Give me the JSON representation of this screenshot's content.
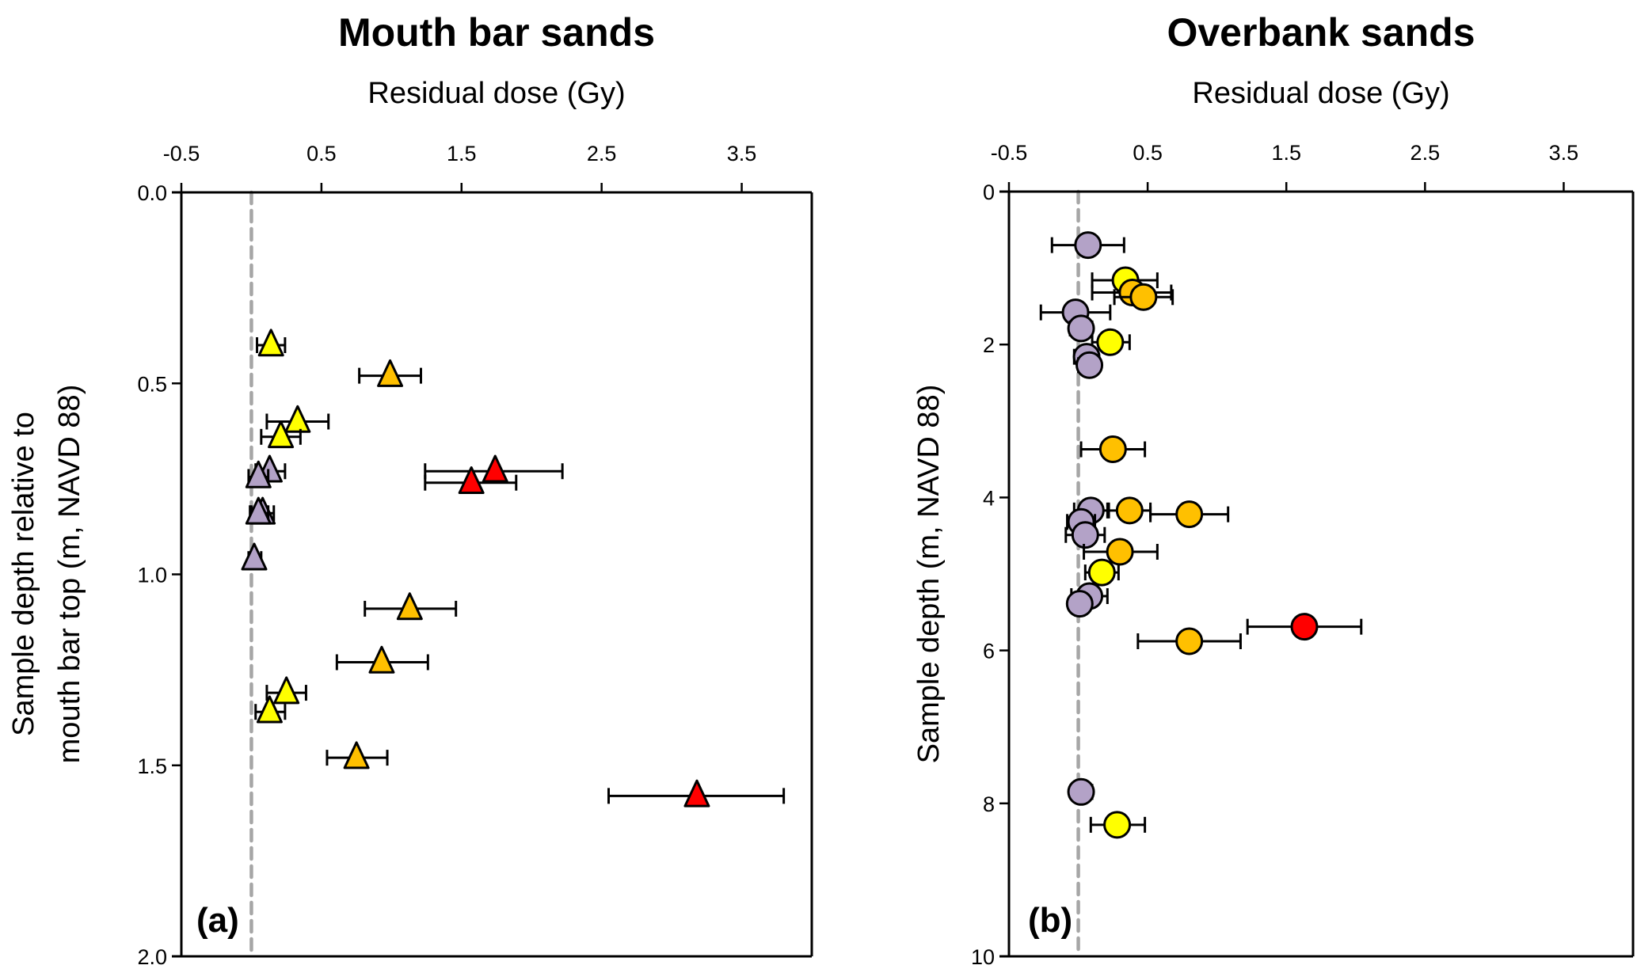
{
  "colors": {
    "yellow": "#FFFF00",
    "orange": "#FFC000",
    "red": "#FF0000",
    "purple": "#B3A2C7",
    "zero_line": "#A6A6A6",
    "axis": "#000000"
  },
  "chart_data": [
    {
      "type": "scatter",
      "panel_label": "(a)",
      "title": "Mouth bar sands",
      "xlabel": "Residual dose (Gy)",
      "ylabel_lines": [
        "Sample depth relative to",
        "mouth bar top (m, NAVD 88)"
      ],
      "xlim": [
        -0.5,
        4.0
      ],
      "ylim": [
        0.0,
        2.0
      ],
      "y_inverted": true,
      "x_axis_position": "top",
      "xticks": [
        -0.5,
        0.5,
        1.5,
        2.5,
        3.5
      ],
      "xtick_labels": [
        "-0.5",
        "0.5",
        "1.5",
        "2.5",
        "3.5"
      ],
      "yticks": [
        0.0,
        0.5,
        1.0,
        1.5,
        2.0
      ],
      "ytick_labels": [
        "0.0",
        "0.5",
        "1.0",
        "1.5",
        "2.0"
      ],
      "reference_line": {
        "x": 0,
        "style": "dashed"
      },
      "marker": "triangle",
      "grid": false,
      "points": [
        {
          "x": 0.14,
          "y": 0.4,
          "xerr_lo": 0.04,
          "xerr_hi": 0.24,
          "color": "yellow"
        },
        {
          "x": 0.99,
          "y": 0.48,
          "xerr_lo": 0.77,
          "xerr_hi": 1.21,
          "color": "orange"
        },
        {
          "x": 0.33,
          "y": 0.6,
          "xerr_lo": 0.11,
          "xerr_hi": 0.55,
          "color": "yellow"
        },
        {
          "x": 0.21,
          "y": 0.64,
          "xerr_lo": 0.07,
          "xerr_hi": 0.35,
          "color": "yellow"
        },
        {
          "x": 0.13,
          "y": 0.73,
          "xerr_lo": 0.03,
          "xerr_hi": 0.24,
          "color": "purple"
        },
        {
          "x": 0.05,
          "y": 0.745,
          "xerr_lo": -0.02,
          "xerr_hi": 0.12,
          "color": "purple"
        },
        {
          "x": 1.74,
          "y": 0.73,
          "xerr_lo": 1.24,
          "xerr_hi": 2.22,
          "color": "red"
        },
        {
          "x": 1.57,
          "y": 0.76,
          "xerr_lo": 1.24,
          "xerr_hi": 1.89,
          "color": "red"
        },
        {
          "x": 0.08,
          "y": 0.84,
          "xerr_lo": 0.0,
          "xerr_hi": 0.16,
          "color": "purple"
        },
        {
          "x": 0.05,
          "y": 0.84,
          "xerr_lo": -0.01,
          "xerr_hi": 0.12,
          "color": "purple"
        },
        {
          "x": 0.02,
          "y": 0.96,
          "xerr_lo": -0.02,
          "xerr_hi": 0.07,
          "color": "purple"
        },
        {
          "x": 1.13,
          "y": 1.09,
          "xerr_lo": 0.81,
          "xerr_hi": 1.46,
          "color": "orange"
        },
        {
          "x": 0.93,
          "y": 1.23,
          "xerr_lo": 0.61,
          "xerr_hi": 1.26,
          "color": "orange"
        },
        {
          "x": 0.25,
          "y": 1.31,
          "xerr_lo": 0.11,
          "xerr_hi": 0.39,
          "color": "yellow"
        },
        {
          "x": 0.13,
          "y": 1.36,
          "xerr_lo": 0.03,
          "xerr_hi": 0.24,
          "color": "yellow"
        },
        {
          "x": 0.75,
          "y": 1.48,
          "xerr_lo": 0.54,
          "xerr_hi": 0.97,
          "color": "orange"
        },
        {
          "x": 3.18,
          "y": 1.58,
          "xerr_lo": 2.55,
          "xerr_hi": 3.8,
          "color": "red"
        }
      ]
    },
    {
      "type": "scatter",
      "panel_label": "(b)",
      "title": "Overbank sands",
      "xlabel": "Residual dose (Gy)",
      "ylabel_lines": [
        "Sample depth (m, NAVD 88)"
      ],
      "xlim": [
        -0.5,
        4.0
      ],
      "ylim": [
        0,
        10
      ],
      "y_inverted": true,
      "x_axis_position": "top",
      "xticks": [
        -0.5,
        0.5,
        1.5,
        2.5,
        3.5
      ],
      "xtick_labels": [
        "-0.5",
        "0.5",
        "1.5",
        "2.5",
        "3.5"
      ],
      "yticks": [
        0,
        2,
        4,
        6,
        8,
        10
      ],
      "ytick_labels": [
        "0",
        "2",
        "4",
        "6",
        "8",
        "10"
      ],
      "reference_line": {
        "x": 0,
        "style": "dashed"
      },
      "marker": "circle",
      "grid": false,
      "points": [
        {
          "x": 0.07,
          "y": 0.7,
          "xerr_lo": -0.19,
          "xerr_hi": 0.33,
          "color": "purple"
        },
        {
          "x": 0.34,
          "y": 1.16,
          "xerr_lo": 0.1,
          "xerr_hi": 0.57,
          "color": "yellow"
        },
        {
          "x": 0.39,
          "y": 1.32,
          "xerr_lo": 0.1,
          "xerr_hi": 0.67,
          "color": "orange"
        },
        {
          "x": 0.47,
          "y": 1.38,
          "xerr_lo": 0.26,
          "xerr_hi": 0.68,
          "color": "orange"
        },
        {
          "x": -0.02,
          "y": 1.58,
          "xerr_lo": -0.27,
          "xerr_hi": 0.23,
          "color": "purple"
        },
        {
          "x": 0.02,
          "y": 1.79,
          "xerr_lo": -0.06,
          "xerr_hi": 0.1,
          "color": "purple"
        },
        {
          "x": 0.23,
          "y": 1.97,
          "xerr_lo": 0.1,
          "xerr_hi": 0.37,
          "color": "yellow"
        },
        {
          "x": 0.06,
          "y": 2.16,
          "xerr_lo": -0.03,
          "xerr_hi": 0.13,
          "color": "purple"
        },
        {
          "x": 0.08,
          "y": 2.27,
          "xerr_lo": 0.0,
          "xerr_hi": 0.15,
          "color": "purple"
        },
        {
          "x": 0.25,
          "y": 3.37,
          "xerr_lo": 0.02,
          "xerr_hi": 0.48,
          "color": "orange"
        },
        {
          "x": 0.09,
          "y": 4.17,
          "xerr_lo": -0.03,
          "xerr_hi": 0.21,
          "color": "purple"
        },
        {
          "x": 0.37,
          "y": 4.17,
          "xerr_lo": 0.22,
          "xerr_hi": 0.52,
          "color": "orange"
        },
        {
          "x": 0.8,
          "y": 4.22,
          "xerr_lo": 0.52,
          "xerr_hi": 1.08,
          "color": "orange"
        },
        {
          "x": 0.02,
          "y": 4.32,
          "xerr_lo": -0.08,
          "xerr_hi": 0.12,
          "color": "purple"
        },
        {
          "x": 0.05,
          "y": 4.49,
          "xerr_lo": -0.09,
          "xerr_hi": 0.19,
          "color": "purple"
        },
        {
          "x": 0.3,
          "y": 4.71,
          "xerr_lo": 0.04,
          "xerr_hi": 0.57,
          "color": "orange"
        },
        {
          "x": 0.17,
          "y": 4.98,
          "xerr_lo": 0.05,
          "xerr_hi": 0.29,
          "color": "yellow"
        },
        {
          "x": 0.08,
          "y": 5.29,
          "xerr_lo": -0.05,
          "xerr_hi": 0.21,
          "color": "purple"
        },
        {
          "x": 0.01,
          "y": 5.39,
          "xerr_lo": -0.06,
          "xerr_hi": 0.08,
          "color": "purple"
        },
        {
          "x": 1.63,
          "y": 5.69,
          "xerr_lo": 1.22,
          "xerr_hi": 2.04,
          "color": "red"
        },
        {
          "x": 0.8,
          "y": 5.88,
          "xerr_lo": 0.43,
          "xerr_hi": 1.17,
          "color": "orange"
        },
        {
          "x": 0.02,
          "y": 7.85,
          "xerr_lo": -0.05,
          "xerr_hi": 0.1,
          "color": "purple"
        },
        {
          "x": 0.28,
          "y": 8.28,
          "xerr_lo": 0.09,
          "xerr_hi": 0.48,
          "color": "yellow"
        }
      ]
    }
  ]
}
